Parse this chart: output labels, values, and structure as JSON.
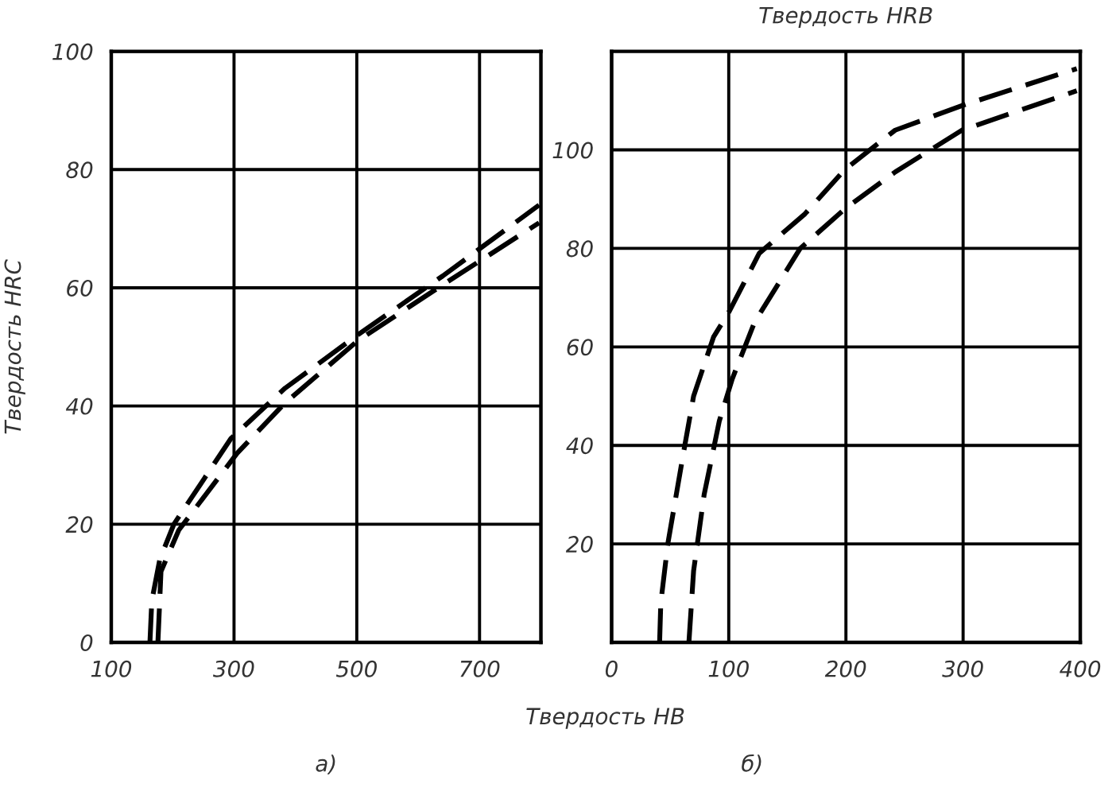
{
  "chart_data": [
    {
      "type": "line",
      "ylabel": "Твердость HRC",
      "xlabel": "Твердость HB",
      "annotations": [
        "а)"
      ],
      "xlim": [
        100,
        800
      ],
      "xticks": [
        100,
        300,
        500,
        700
      ],
      "ylim": [
        0,
        100
      ],
      "yticks": [
        0,
        20,
        40,
        60,
        80,
        100
      ],
      "grid": true,
      "line_style": "dashed",
      "marker": "none",
      "series": [
        {
          "color": "#000000",
          "x": [
            163,
            166,
            179,
            202,
            295,
            383,
            501,
            640,
            797
          ],
          "values": [
            0,
            7,
            14,
            20,
            34.5,
            43,
            52,
            62,
            74
          ]
        },
        {
          "color": "#000000",
          "x": [
            176,
            181,
            210,
            305,
            383,
            501,
            640,
            797
          ],
          "values": [
            0,
            12,
            19,
            32,
            40.5,
            51,
            60.5,
            71
          ]
        }
      ]
    },
    {
      "type": "line",
      "ylabel": "Твердость HRB",
      "annotations": [
        "б)"
      ],
      "xlim": [
        0,
        400
      ],
      "xticks": [
        0,
        100,
        200,
        300,
        400
      ],
      "ylim": [
        0,
        120
      ],
      "yticks": [
        {
          "value": 0,
          "label": null
        },
        20,
        40,
        60,
        80,
        100
      ],
      "grid": true,
      "line_style": "dashed",
      "marker": "none",
      "series": [
        {
          "color": "#000000",
          "x": [
            41,
            42,
            48,
            61,
            70,
            87,
            100,
            126,
            165,
            199,
            242,
            299,
            397
          ],
          "values": [
            0,
            8,
            20,
            38,
            50,
            62,
            67,
            79,
            87,
            96,
            104,
            109,
            116.5
          ]
        },
        {
          "color": "#000000",
          "x": [
            66,
            70,
            79,
            92,
            103,
            122,
            161,
            199,
            242,
            299,
            397
          ],
          "values": [
            0,
            14.5,
            30,
            45,
            53.5,
            65,
            80,
            88,
            95.5,
            104,
            112
          ]
        }
      ]
    }
  ]
}
